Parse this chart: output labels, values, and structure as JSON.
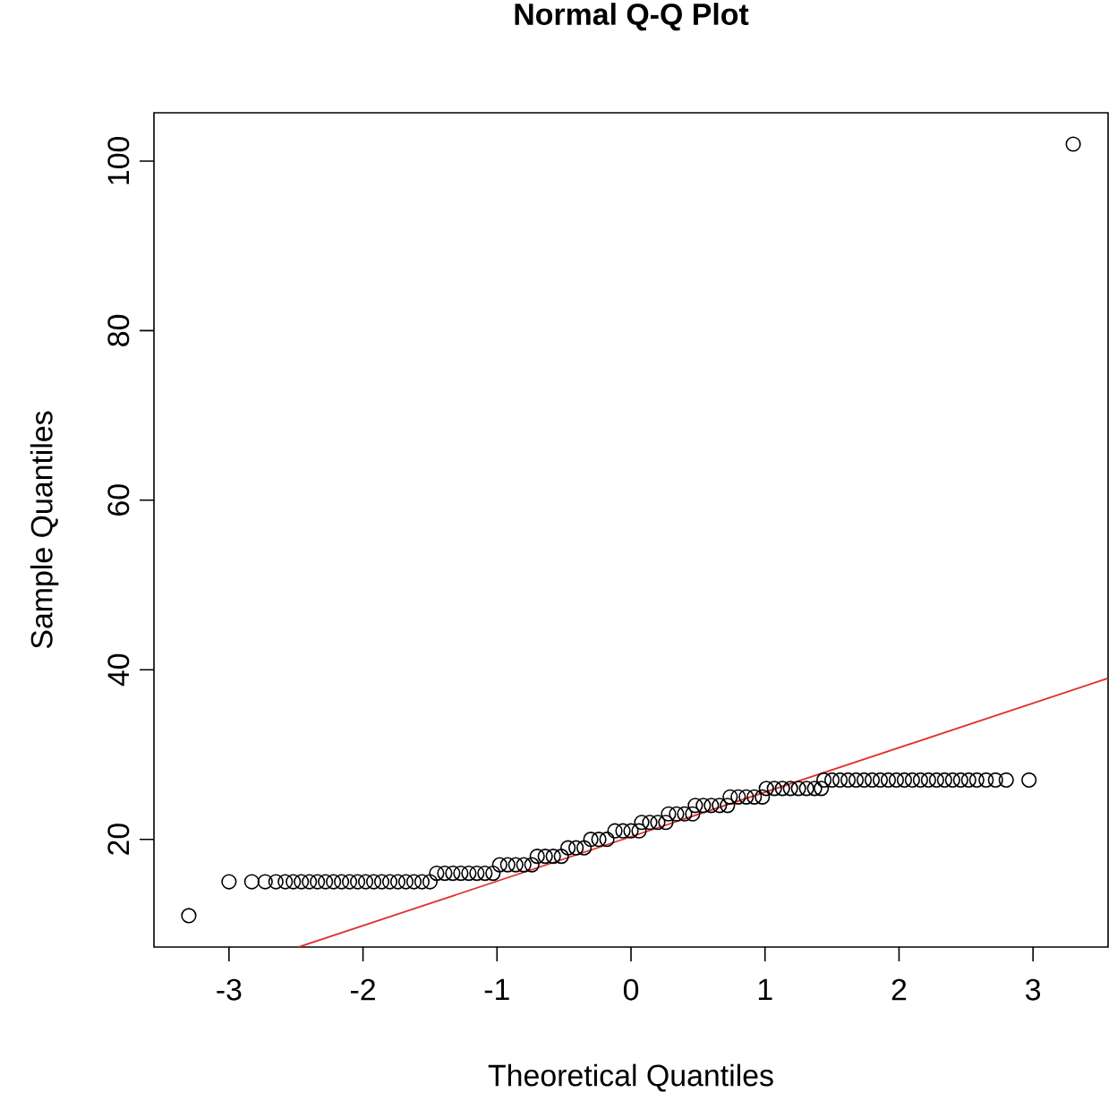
{
  "chart_data": {
    "type": "scatter",
    "title": "Normal Q-Q Plot",
    "xlabel": "Theoretical Quantiles",
    "ylabel": "Sample Quantiles",
    "xlim": [
      -3.56,
      3.56
    ],
    "ylim": [
      7.3,
      105.7
    ],
    "xticks": [
      -3,
      -2,
      -1,
      0,
      1,
      2,
      3
    ],
    "yticks": [
      20,
      40,
      60,
      80,
      100
    ],
    "grid": false,
    "marker": "circle",
    "series": [
      {
        "color": "#000000",
        "x": [
          -3.3,
          -3.0,
          -2.83,
          -2.73,
          -2.65,
          -2.58,
          -2.52,
          -2.46,
          -2.4,
          -2.34,
          -2.28,
          -2.22,
          -2.16,
          -2.1,
          -2.04,
          -1.98,
          -1.92,
          -1.86,
          -1.8,
          -1.74,
          -1.68,
          -1.62,
          -1.56,
          -1.5,
          -1.45,
          -1.39,
          -1.33,
          -1.27,
          -1.21,
          -1.15,
          -1.09,
          -1.03,
          -0.98,
          -0.92,
          -0.86,
          -0.8,
          -0.74,
          -0.7,
          -0.64,
          -0.58,
          -0.52,
          -0.47,
          -0.41,
          -0.35,
          -0.3,
          -0.24,
          -0.18,
          -0.12,
          -0.06,
          0.0,
          0.06,
          0.08,
          0.14,
          0.2,
          0.26,
          0.28,
          0.34,
          0.4,
          0.46,
          0.48,
          0.54,
          0.6,
          0.66,
          0.72,
          0.74,
          0.8,
          0.86,
          0.92,
          0.98,
          1.01,
          1.07,
          1.13,
          1.19,
          1.25,
          1.31,
          1.37,
          1.42,
          1.44,
          1.5,
          1.56,
          1.62,
          1.68,
          1.74,
          1.8,
          1.86,
          1.92,
          1.98,
          2.04,
          2.1,
          2.16,
          2.22,
          2.28,
          2.34,
          2.4,
          2.46,
          2.52,
          2.58,
          2.65,
          2.72,
          2.8,
          2.97,
          3.3
        ],
        "values": [
          11,
          15,
          15,
          15,
          15,
          15,
          15,
          15,
          15,
          15,
          15,
          15,
          15,
          15,
          15,
          15,
          15,
          15,
          15,
          15,
          15,
          15,
          15,
          15,
          16,
          16,
          16,
          16,
          16,
          16,
          16,
          16,
          17,
          17,
          17,
          17,
          17,
          18,
          18,
          18,
          18,
          19,
          19,
          19,
          20,
          20,
          20,
          21,
          21,
          21,
          21,
          22,
          22,
          22,
          22,
          23,
          23,
          23,
          23,
          24,
          24,
          24,
          24,
          24,
          25,
          25,
          25,
          25,
          25,
          26,
          26,
          26,
          26,
          26,
          26,
          26,
          26,
          27,
          27,
          27,
          27,
          27,
          27,
          27,
          27,
          27,
          27,
          27,
          27,
          27,
          27,
          27,
          27,
          27,
          27,
          27,
          27,
          27,
          27,
          27,
          27,
          102
        ]
      },
      {
        "type": "line",
        "color": "#e03030",
        "marker": "none",
        "line_style": "solid",
        "x": [
          -2.48,
          3.56
        ],
        "values": [
          7.3,
          39.0
        ]
      }
    ]
  }
}
